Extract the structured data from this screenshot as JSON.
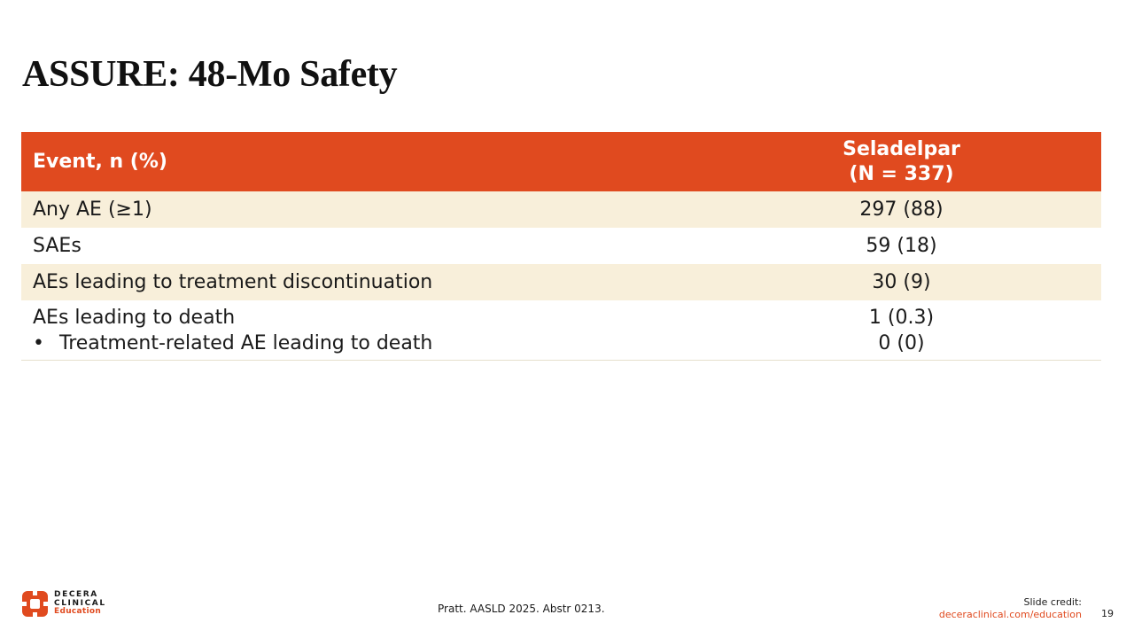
{
  "slide": {
    "title": "ASSURE: 48-Mo Safety",
    "page_number": "19"
  },
  "table": {
    "header": {
      "event": "Event, n (%)",
      "seladelpar_line1": "Seladelpar",
      "seladelpar_line2": "(N = 337)"
    },
    "rows": [
      {
        "event": "Any AE (≥1)",
        "value": "297 (88)"
      },
      {
        "event": "SAEs",
        "value": "59 (18)"
      },
      {
        "event": "AEs leading to treatment discontinuation",
        "value": "30 (9)"
      },
      {
        "event": "AEs leading to death",
        "value": "1 (0.3)"
      },
      {
        "event": "Treatment-related AE leading to death",
        "value": "0 (0)",
        "bullet": "•"
      }
    ]
  },
  "footer": {
    "citation": "Pratt. AASLD 2025. Abstr 0213.",
    "credit_label": "Slide credit:",
    "credit_url": "deceraclinical.com/education"
  },
  "logo": {
    "line1": "DECERA",
    "line2": "CLINICAL",
    "line3": "Education"
  },
  "colors": {
    "header_bg": "#e04a1f",
    "row_shade": "#f8efda",
    "accent": "#e04a1f"
  }
}
